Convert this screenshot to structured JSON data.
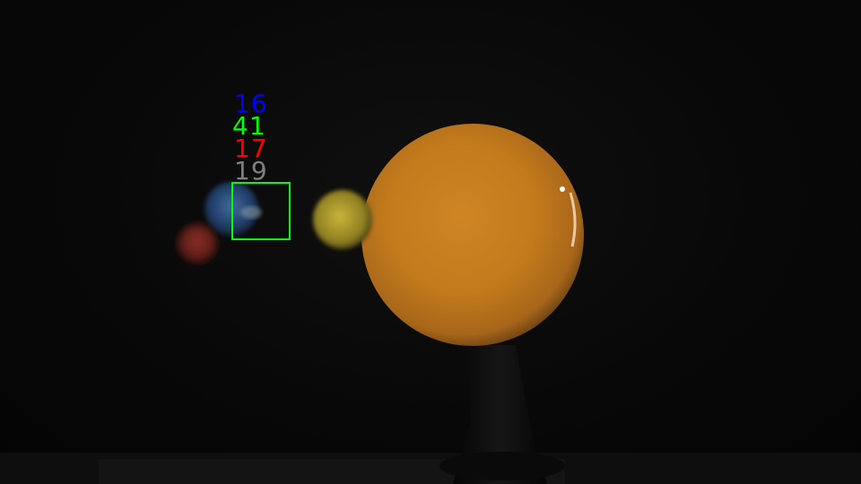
{
  "scene": {
    "objects": [
      {
        "name": "sun-model",
        "color": "#c8801c"
      },
      {
        "name": "yellow-planet",
        "color": "#b5a22c"
      },
      {
        "name": "earth-planet",
        "color": "#2a4a78"
      },
      {
        "name": "red-planet",
        "color": "#7a2a22"
      },
      {
        "name": "stand",
        "color": "#0c0c0c"
      }
    ]
  },
  "overlay": {
    "labels": [
      {
        "id": "blue",
        "text": "16",
        "color": "#0000ff"
      },
      {
        "id": "green",
        "text": "41",
        "color": "#00ff00"
      },
      {
        "id": "red",
        "text": "17",
        "color": "#ff0000"
      },
      {
        "id": "gray",
        "text": "19",
        "color": "#808080"
      }
    ],
    "box_color": "#00ff00"
  }
}
